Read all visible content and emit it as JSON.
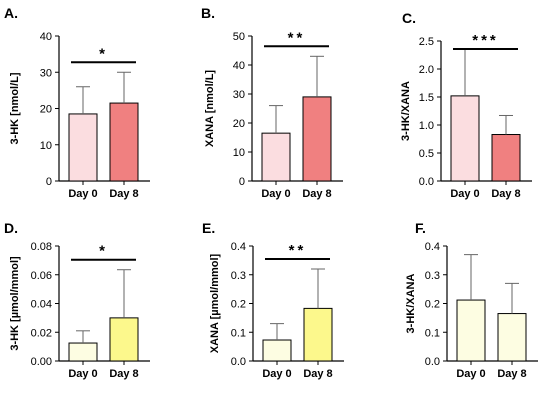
{
  "chart_data": [
    {
      "panel": "A.",
      "type": "bar",
      "ylabel": "3-HK [nmol/L]",
      "ylim": [
        0,
        40
      ],
      "yticks": [
        "0",
        "10",
        "20",
        "30",
        "40"
      ],
      "categories": [
        "Day 0",
        "Day 8"
      ],
      "values": [
        18.5,
        21.5
      ],
      "errors_upper": [
        26,
        30
      ],
      "bar_colors": [
        "#fbdde0",
        "#f08080"
      ],
      "significance": "*"
    },
    {
      "panel": "B.",
      "type": "bar",
      "ylabel": "XANA [nmol/L]",
      "ylim": [
        0,
        50
      ],
      "yticks": [
        "0",
        "10",
        "20",
        "30",
        "40",
        "50"
      ],
      "categories": [
        "Day 0",
        "Day 8"
      ],
      "values": [
        16.5,
        29
      ],
      "errors_upper": [
        26,
        43
      ],
      "bar_colors": [
        "#fbdde0",
        "#f08080"
      ],
      "significance": "**"
    },
    {
      "panel": "C.",
      "type": "bar",
      "ylabel": "3-HK/XANA",
      "ylim": [
        0,
        2.5
      ],
      "yticks": [
        "0.0",
        "0.5",
        "1.0",
        "1.5",
        "2.0",
        "2.5"
      ],
      "categories": [
        "Day 0",
        "Day 8"
      ],
      "values": [
        1.52,
        0.83
      ],
      "errors_upper": [
        2.35,
        1.17
      ],
      "bar_colors": [
        "#fbdde0",
        "#f08080"
      ],
      "significance": "***"
    },
    {
      "panel": "D.",
      "type": "bar",
      "ylabel": "3-HK [µmol/mmol]",
      "ylim": [
        0,
        0.08
      ],
      "yticks": [
        "0.00",
        "0.02",
        "0.04",
        "0.06",
        "0.08"
      ],
      "categories": [
        "Day 0",
        "Day 8"
      ],
      "values": [
        0.0125,
        0.03
      ],
      "errors_upper": [
        0.021,
        0.0635
      ],
      "bar_colors": [
        "#fdfde2",
        "#fcf88c"
      ],
      "significance": "*"
    },
    {
      "panel": "E.",
      "type": "bar",
      "ylabel": "XANA [µmol/mmol]",
      "ylim": [
        0,
        0.4
      ],
      "yticks": [
        "0.0",
        "0.1",
        "0.2",
        "0.3",
        "0.4"
      ],
      "categories": [
        "Day 0",
        "Day 8"
      ],
      "values": [
        0.073,
        0.183
      ],
      "errors_upper": [
        0.13,
        0.32
      ],
      "bar_colors": [
        "#fdfde2",
        "#fcf88c"
      ],
      "significance": "**"
    },
    {
      "panel": "F.",
      "type": "bar",
      "ylabel": "3-HK/XANA",
      "ylim": [
        0,
        0.4
      ],
      "yticks": [
        "0.0",
        "0.1",
        "0.2",
        "0.3",
        "0.4"
      ],
      "categories": [
        "Day 0",
        "Day 8"
      ],
      "values": [
        0.212,
        0.165
      ],
      "errors_upper": [
        0.37,
        0.27
      ],
      "bar_colors": [
        "#fdfde2",
        "#fdfde2"
      ],
      "significance": ""
    }
  ]
}
